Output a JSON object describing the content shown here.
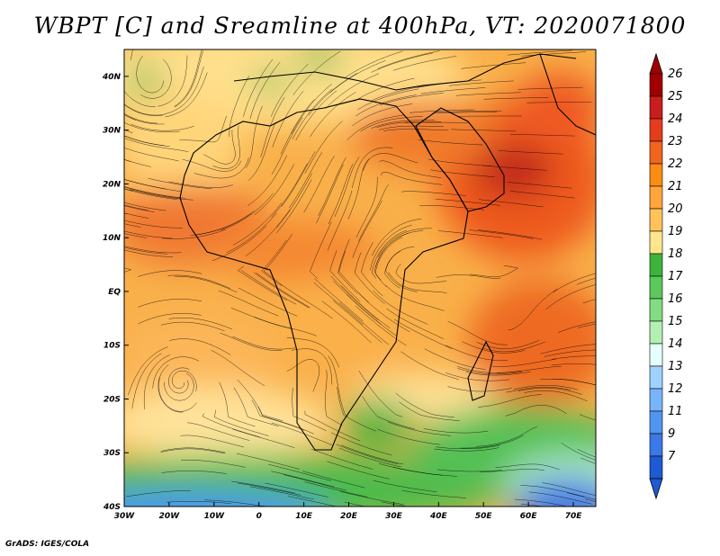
{
  "title": "WBPT [C] and Sreamline at 400hPa, VT: 2020071800",
  "credit": "GrADS: IGES/COLA",
  "map": {
    "lon_range": [
      -30,
      75
    ],
    "lat_range": [
      -40,
      45
    ],
    "lon_ticks": [
      {
        "value": -30,
        "label": "30W"
      },
      {
        "value": -20,
        "label": "20W"
      },
      {
        "value": -10,
        "label": "10W"
      },
      {
        "value": 0,
        "label": "0"
      },
      {
        "value": 10,
        "label": "10E"
      },
      {
        "value": 20,
        "label": "20E"
      },
      {
        "value": 30,
        "label": "30E"
      },
      {
        "value": 40,
        "label": "40E"
      },
      {
        "value": 50,
        "label": "50E"
      },
      {
        "value": 60,
        "label": "60E"
      },
      {
        "value": 70,
        "label": "70E"
      }
    ],
    "lat_ticks": [
      {
        "value": 40,
        "label": "40N"
      },
      {
        "value": 30,
        "label": "30N"
      },
      {
        "value": 20,
        "label": "20N"
      },
      {
        "value": 10,
        "label": "10N"
      },
      {
        "value": 0,
        "label": "EQ"
      },
      {
        "value": -10,
        "label": "10S"
      },
      {
        "value": -20,
        "label": "20S"
      },
      {
        "value": -30,
        "label": "30S"
      },
      {
        "value": -40,
        "label": "40S"
      }
    ]
  },
  "colorbar": {
    "labels": [
      "26",
      "25",
      "24",
      "23",
      "22",
      "21",
      "20",
      "19",
      "18",
      "17",
      "16",
      "15",
      "14",
      "13",
      "12",
      "11",
      "9",
      "7"
    ],
    "colors": [
      "#a00000",
      "#c81e1e",
      "#e63c1e",
      "#f0641e",
      "#fa8c14",
      "#ffa53c",
      "#ffc35a",
      "#ffe68c",
      "#3cb43c",
      "#5ac85a",
      "#82dc82",
      "#b4f0b4",
      "#e6ffff",
      "#a0d2ff",
      "#78b4fa",
      "#5096f0",
      "#3c78e6",
      "#1e5ad2"
    ],
    "over_color": "#a00000",
    "under_color": "#1e5ad2"
  }
}
